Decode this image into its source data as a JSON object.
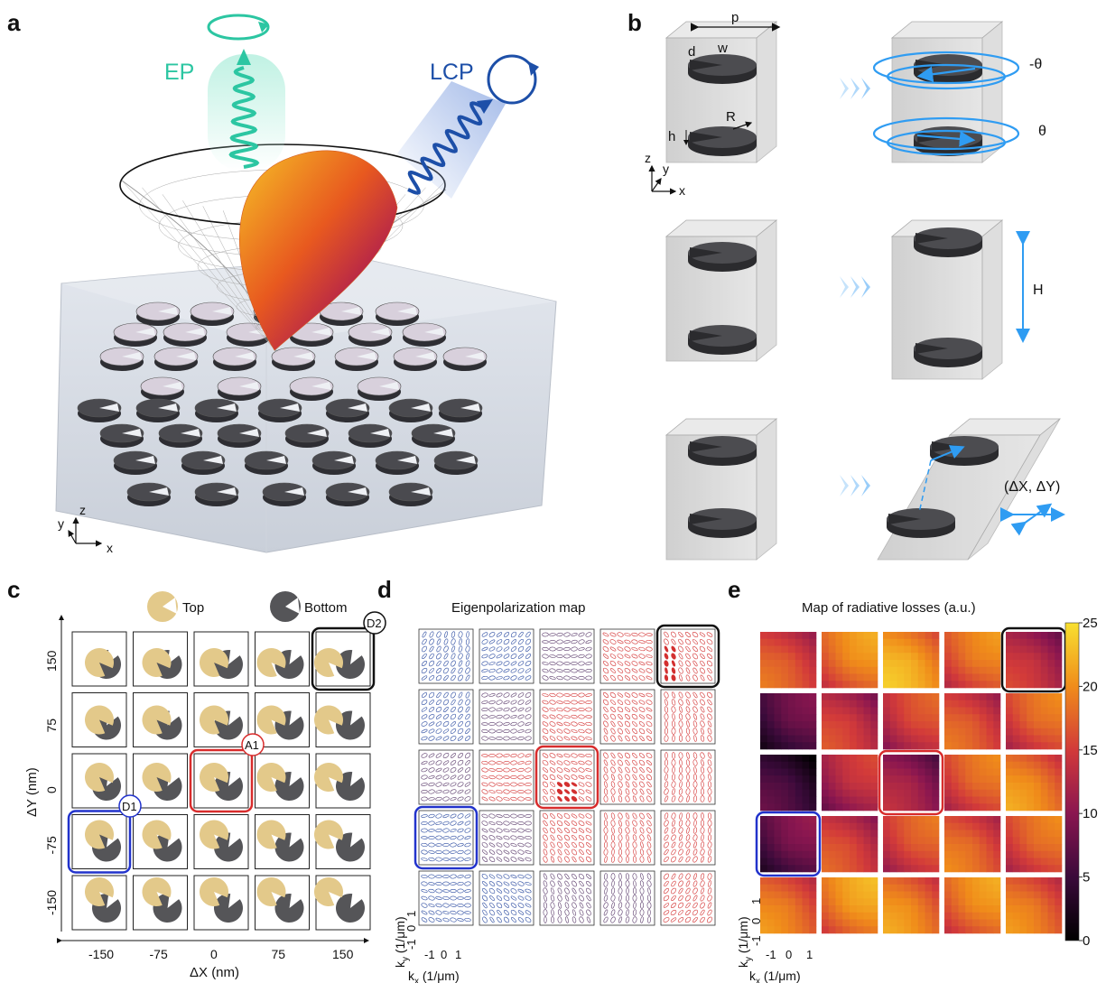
{
  "panels": {
    "a": "a",
    "b": "b",
    "c": "c",
    "d": "d",
    "e": "e"
  },
  "panel_a": {
    "ep_label": "EP",
    "lcp_label": "LCP",
    "axis_y": "y",
    "axis_z": "z",
    "axis_x": "x",
    "colors": {
      "ep": "#2cc6a2",
      "lcp": "#1d4fa8",
      "metal": "#4a4a4f",
      "top_disk": "#d9d2dd"
    }
  },
  "panel_b": {
    "param_p": "p",
    "param_d": "d",
    "param_w": "w",
    "param_R": "R",
    "param_h": "h",
    "axis_z": "z",
    "axis_y": "y",
    "axis_x": "x",
    "theta_top": "-θ",
    "theta_bottom": "θ",
    "height_label": "H",
    "shift_label": "(ΔX, ΔY)",
    "colors": {
      "arrow": "#2f9cf2"
    }
  },
  "panel_c": {
    "legend_top": "Top",
    "legend_bottom": "Bottom",
    "x_label": "ΔX (nm)",
    "y_label": "ΔY (nm)",
    "x_ticks": [
      "-150",
      "-75",
      "0",
      "75",
      "150"
    ],
    "y_ticks": [
      "150",
      "75",
      "0",
      "-75",
      "-150"
    ],
    "tag_d2": "D2",
    "tag_a1": "A1",
    "tag_d1": "D1",
    "colors": {
      "top": "#e3c98a",
      "bottom": "#555558",
      "d2": "#111111",
      "a1": "#d82c2c",
      "d1": "#2233cc"
    }
  },
  "panel_d": {
    "title": "Eigenpolarization map",
    "x_label": "k",
    "x_label_sub": "x",
    "x_label_unit": " (1/μm)",
    "y_label": "k",
    "y_label_sub": "y",
    "y_label_unit": " (1/μm)",
    "ticks": [
      "-1",
      "0",
      "1"
    ]
  },
  "panel_e": {
    "title": "Map of radiative losses (a.u.)",
    "colorbar_ticks": [
      "25",
      "20",
      "15",
      "10",
      "5",
      "0"
    ],
    "x_label": "k",
    "x_label_sub": "x",
    "x_label_unit": " (1/μm)",
    "y_label": "k",
    "y_label_sub": "y",
    "y_label_unit": " (1/μm)",
    "ticks": [
      "-1",
      "0",
      "1"
    ]
  },
  "chart_data": {
    "type": "heatmap",
    "title": "Map of radiative losses (a.u.)",
    "colorbar_range": [
      0,
      25
    ],
    "rows_dY_nm": [
      150,
      75,
      0,
      -75,
      -150
    ],
    "cols_dX_nm": [
      -150,
      -75,
      0,
      75,
      150
    ],
    "mean_loss": [
      [
        17,
        20,
        22,
        19,
        14
      ],
      [
        8,
        15,
        16,
        17,
        18
      ],
      [
        6,
        14,
        12,
        18,
        20
      ],
      [
        9,
        16,
        17,
        18,
        18
      ],
      [
        19,
        21,
        20,
        20,
        19
      ]
    ]
  }
}
